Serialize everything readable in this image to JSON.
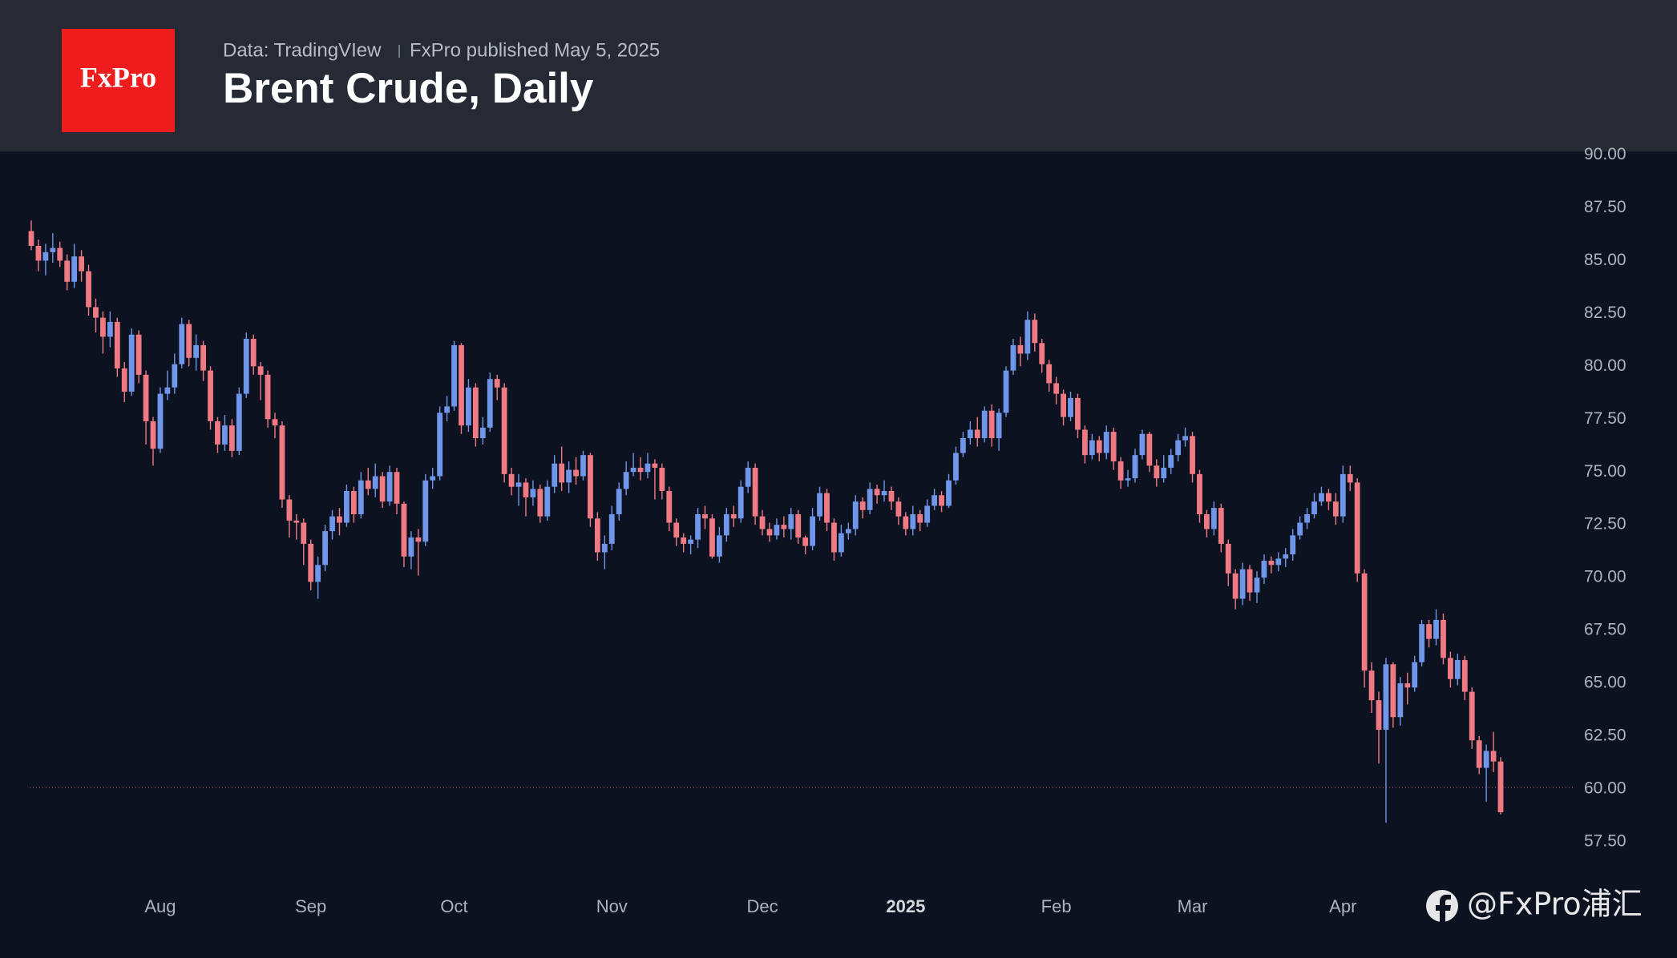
{
  "header": {
    "logo": "FxPro",
    "source": "Data: TradingVIew",
    "published": "FxPro published May 5, 2025"
  },
  "watermark": "@FxPro浦汇",
  "chart_data": {
    "type": "candlestick",
    "title": "Brent Crude, Daily",
    "up_color": "#7096ea",
    "down_color": "#f07a84",
    "ylim": [
      55.64,
      90.17
    ],
    "yticks": [
      {
        "value": 57.5,
        "label": "57.50"
      },
      {
        "value": 60,
        "label": "60.00"
      },
      {
        "value": 62.5,
        "label": "62.50"
      },
      {
        "value": 65,
        "label": "65.00"
      },
      {
        "value": 67.5,
        "label": "67.50"
      },
      {
        "value": 70,
        "label": "70.00"
      },
      {
        "value": 72.5,
        "label": "72.50"
      },
      {
        "value": 75,
        "label": "75.00"
      },
      {
        "value": 77.5,
        "label": "77.50"
      },
      {
        "value": 80,
        "label": "80.00"
      },
      {
        "value": 82.5,
        "label": "82.50"
      },
      {
        "value": 85,
        "label": "85.00"
      },
      {
        "value": 87.5,
        "label": "87.50"
      },
      {
        "value": 90,
        "label": "90.00"
      }
    ],
    "price_line": 60.07,
    "xlabels": [
      {
        "label": "Aug",
        "index": 18
      },
      {
        "label": "Sep",
        "index": 39
      },
      {
        "label": "Oct",
        "index": 59
      },
      {
        "label": "Nov",
        "index": 81
      },
      {
        "label": "Dec",
        "index": 102
      },
      {
        "label": "2025",
        "index": 122,
        "bold": true
      },
      {
        "label": "Feb",
        "index": 143
      },
      {
        "label": "Mar",
        "index": 162
      },
      {
        "label": "Apr",
        "index": 183
      }
    ],
    "ohlc": [
      [
        86.4,
        86.9,
        85.5,
        85.7
      ],
      [
        85.7,
        86.0,
        84.5,
        85.0
      ],
      [
        85.0,
        85.8,
        84.3,
        85.4
      ],
      [
        85.4,
        86.3,
        84.9,
        85.6
      ],
      [
        85.6,
        85.9,
        84.7,
        85.0
      ],
      [
        85.0,
        85.3,
        83.6,
        84.0
      ],
      [
        84.0,
        85.8,
        83.7,
        85.2
      ],
      [
        85.2,
        85.5,
        84.0,
        84.5
      ],
      [
        84.5,
        84.8,
        82.4,
        82.8
      ],
      [
        82.8,
        83.2,
        81.6,
        82.3
      ],
      [
        82.3,
        82.6,
        80.6,
        81.4
      ],
      [
        81.4,
        82.6,
        80.9,
        82.1
      ],
      [
        82.1,
        82.3,
        79.5,
        79.9
      ],
      [
        79.9,
        80.2,
        78.3,
        78.8
      ],
      [
        78.8,
        81.8,
        78.6,
        81.5
      ],
      [
        81.5,
        81.7,
        79.2,
        79.6
      ],
      [
        79.6,
        79.8,
        76.3,
        77.4
      ],
      [
        77.4,
        77.6,
        75.3,
        76.1
      ],
      [
        76.1,
        79.0,
        75.9,
        78.7
      ],
      [
        78.7,
        79.8,
        78.4,
        79.0
      ],
      [
        79.0,
        80.6,
        78.7,
        80.1
      ],
      [
        80.1,
        82.3,
        79.9,
        82.0
      ],
      [
        82.0,
        82.2,
        80.0,
        80.4
      ],
      [
        80.4,
        81.5,
        79.8,
        81.0
      ],
      [
        81.0,
        81.2,
        79.3,
        79.8
      ],
      [
        79.8,
        80.0,
        77.0,
        77.4
      ],
      [
        77.4,
        77.6,
        75.9,
        76.3
      ],
      [
        76.3,
        77.7,
        76.0,
        77.2
      ],
      [
        77.2,
        77.5,
        75.7,
        76.0
      ],
      [
        76.0,
        79.0,
        75.8,
        78.7
      ],
      [
        78.7,
        81.6,
        78.5,
        81.3
      ],
      [
        81.3,
        81.5,
        79.6,
        80.0
      ],
      [
        80.0,
        80.2,
        78.4,
        79.6
      ],
      [
        79.6,
        79.8,
        77.1,
        77.5
      ],
      [
        77.5,
        77.8,
        76.6,
        77.2
      ],
      [
        77.2,
        77.4,
        73.3,
        73.7
      ],
      [
        73.7,
        73.9,
        71.9,
        72.7
      ],
      [
        72.7,
        73.0,
        71.8,
        72.6
      ],
      [
        72.6,
        72.8,
        70.6,
        71.6
      ],
      [
        71.6,
        71.8,
        69.4,
        69.8
      ],
      [
        69.8,
        71.0,
        69.0,
        70.6
      ],
      [
        70.6,
        72.5,
        70.3,
        72.2
      ],
      [
        72.2,
        73.2,
        71.8,
        72.9
      ],
      [
        72.9,
        73.3,
        72.0,
        72.6
      ],
      [
        72.6,
        74.4,
        72.4,
        74.1
      ],
      [
        74.1,
        74.3,
        72.6,
        73.0
      ],
      [
        73.0,
        75.0,
        72.8,
        74.6
      ],
      [
        74.6,
        75.2,
        73.9,
        74.2
      ],
      [
        74.2,
        75.4,
        73.8,
        74.8
      ],
      [
        74.8,
        75.0,
        73.3,
        73.6
      ],
      [
        73.6,
        75.3,
        73.4,
        75.0
      ],
      [
        75.0,
        75.2,
        73.0,
        73.5
      ],
      [
        73.5,
        73.6,
        70.5,
        71.0
      ],
      [
        71.0,
        72.2,
        70.4,
        71.9
      ],
      [
        71.9,
        72.3,
        70.1,
        71.7
      ],
      [
        71.7,
        74.9,
        71.5,
        74.6
      ],
      [
        74.6,
        75.2,
        74.2,
        74.8
      ],
      [
        74.8,
        78.1,
        74.6,
        77.8
      ],
      [
        77.8,
        78.6,
        77.4,
        78.1
      ],
      [
        78.1,
        81.2,
        77.9,
        81.0
      ],
      [
        81.0,
        81.1,
        76.8,
        77.2
      ],
      [
        77.2,
        79.4,
        76.9,
        79.0
      ],
      [
        79.0,
        79.2,
        76.2,
        76.6
      ],
      [
        76.6,
        77.6,
        76.3,
        77.1
      ],
      [
        77.1,
        79.7,
        76.9,
        79.4
      ],
      [
        79.4,
        79.6,
        78.4,
        79.0
      ],
      [
        79.0,
        79.2,
        74.5,
        74.9
      ],
      [
        74.9,
        75.2,
        73.9,
        74.3
      ],
      [
        74.3,
        74.9,
        73.4,
        74.5
      ],
      [
        74.5,
        74.7,
        72.9,
        73.8
      ],
      [
        73.8,
        74.6,
        73.4,
        74.2
      ],
      [
        74.2,
        74.4,
        72.6,
        72.9
      ],
      [
        72.9,
        74.6,
        72.7,
        74.3
      ],
      [
        74.3,
        75.8,
        74.0,
        75.4
      ],
      [
        75.4,
        76.2,
        74.1,
        74.5
      ],
      [
        74.5,
        75.5,
        74.0,
        75.1
      ],
      [
        75.1,
        75.7,
        74.4,
        74.8
      ],
      [
        74.8,
        76.0,
        74.6,
        75.8
      ],
      [
        75.8,
        75.9,
        72.4,
        72.8
      ],
      [
        72.8,
        73.1,
        70.8,
        71.2
      ],
      [
        71.2,
        72.0,
        70.4,
        71.6
      ],
      [
        71.6,
        73.4,
        71.3,
        73.0
      ],
      [
        73.0,
        74.5,
        72.7,
        74.2
      ],
      [
        74.2,
        75.5,
        73.9,
        75.0
      ],
      [
        75.0,
        75.9,
        74.8,
        75.2
      ],
      [
        75.2,
        75.7,
        74.6,
        75.0
      ],
      [
        75.0,
        75.9,
        74.7,
        75.4
      ],
      [
        75.4,
        75.6,
        73.7,
        75.2
      ],
      [
        75.2,
        75.4,
        73.7,
        74.1
      ],
      [
        74.1,
        74.3,
        72.2,
        72.6
      ],
      [
        72.6,
        72.8,
        71.5,
        71.9
      ],
      [
        71.9,
        72.1,
        71.2,
        71.6
      ],
      [
        71.6,
        72.0,
        71.1,
        71.8
      ],
      [
        71.8,
        73.3,
        71.4,
        73.0
      ],
      [
        73.0,
        73.4,
        72.3,
        72.8
      ],
      [
        72.8,
        73.0,
        70.9,
        71.0
      ],
      [
        71.0,
        72.4,
        70.7,
        72.0
      ],
      [
        72.0,
        73.3,
        71.7,
        73.0
      ],
      [
        73.0,
        73.4,
        72.4,
        72.8
      ],
      [
        72.8,
        74.6,
        72.6,
        74.3
      ],
      [
        74.3,
        75.5,
        74.0,
        75.2
      ],
      [
        75.2,
        75.4,
        72.5,
        72.9
      ],
      [
        72.9,
        73.2,
        72.0,
        72.3
      ],
      [
        72.3,
        72.6,
        71.7,
        72.0
      ],
      [
        72.0,
        72.8,
        71.8,
        72.5
      ],
      [
        72.5,
        72.9,
        71.9,
        72.3
      ],
      [
        72.3,
        73.3,
        71.8,
        73.0
      ],
      [
        73.0,
        73.2,
        71.6,
        71.9
      ],
      [
        71.9,
        72.0,
        71.1,
        71.5
      ],
      [
        71.5,
        73.3,
        71.3,
        72.9
      ],
      [
        72.9,
        74.3,
        72.7,
        74.0
      ],
      [
        74.0,
        74.2,
        72.2,
        72.6
      ],
      [
        72.6,
        72.8,
        70.8,
        71.2
      ],
      [
        71.2,
        72.5,
        71.0,
        72.1
      ],
      [
        72.1,
        72.6,
        71.8,
        72.3
      ],
      [
        72.3,
        73.9,
        72.0,
        73.6
      ],
      [
        73.6,
        73.8,
        72.8,
        73.2
      ],
      [
        73.2,
        74.5,
        73.0,
        74.2
      ],
      [
        74.2,
        74.4,
        73.5,
        73.9
      ],
      [
        73.9,
        74.6,
        73.6,
        74.1
      ],
      [
        74.1,
        74.3,
        73.2,
        73.6
      ],
      [
        73.6,
        73.8,
        72.5,
        72.9
      ],
      [
        72.9,
        73.1,
        72.0,
        72.3
      ],
      [
        72.3,
        73.4,
        72.0,
        73.0
      ],
      [
        73.0,
        73.2,
        72.2,
        72.6
      ],
      [
        72.6,
        73.7,
        72.4,
        73.4
      ],
      [
        73.4,
        74.2,
        73.2,
        73.9
      ],
      [
        73.9,
        74.1,
        73.1,
        73.4
      ],
      [
        73.4,
        74.9,
        73.3,
        74.6
      ],
      [
        74.6,
        76.2,
        74.4,
        75.9
      ],
      [
        75.9,
        76.9,
        75.7,
        76.6
      ],
      [
        76.6,
        77.4,
        76.3,
        77.0
      ],
      [
        77.0,
        77.6,
        76.2,
        76.6
      ],
      [
        76.6,
        78.1,
        76.4,
        77.9
      ],
      [
        77.9,
        78.2,
        76.2,
        76.6
      ],
      [
        76.6,
        78.0,
        76.0,
        77.8
      ],
      [
        77.8,
        80.0,
        77.6,
        79.8
      ],
      [
        79.8,
        81.3,
        79.6,
        81.0
      ],
      [
        81.0,
        81.4,
        80.0,
        80.6
      ],
      [
        80.6,
        82.6,
        80.3,
        82.2
      ],
      [
        82.2,
        82.5,
        80.7,
        81.1
      ],
      [
        81.1,
        81.3,
        79.7,
        80.1
      ],
      [
        80.1,
        80.3,
        78.8,
        79.2
      ],
      [
        79.2,
        79.5,
        78.2,
        78.7
      ],
      [
        78.7,
        78.9,
        77.2,
        77.6
      ],
      [
        77.6,
        78.8,
        77.4,
        78.5
      ],
      [
        78.5,
        78.7,
        76.6,
        77.0
      ],
      [
        77.0,
        77.2,
        75.4,
        75.8
      ],
      [
        75.8,
        76.8,
        75.6,
        76.5
      ],
      [
        76.5,
        76.7,
        75.5,
        75.9
      ],
      [
        75.9,
        77.2,
        75.6,
        76.9
      ],
      [
        76.9,
        77.1,
        75.1,
        75.5
      ],
      [
        75.5,
        75.7,
        74.2,
        74.6
      ],
      [
        74.6,
        75.1,
        74.3,
        74.7
      ],
      [
        74.7,
        76.1,
        74.5,
        75.8
      ],
      [
        75.8,
        77.0,
        75.6,
        76.8
      ],
      [
        76.8,
        76.9,
        75.0,
        75.3
      ],
      [
        75.3,
        75.6,
        74.3,
        74.7
      ],
      [
        74.7,
        75.8,
        74.5,
        75.2
      ],
      [
        75.2,
        76.1,
        74.9,
        75.8
      ],
      [
        75.8,
        76.8,
        75.5,
        76.5
      ],
      [
        76.5,
        77.1,
        76.2,
        76.7
      ],
      [
        76.7,
        76.9,
        74.5,
        74.9
      ],
      [
        74.9,
        75.1,
        72.6,
        73.0
      ],
      [
        73.0,
        73.2,
        71.9,
        72.3
      ],
      [
        72.3,
        73.6,
        72.0,
        73.3
      ],
      [
        73.3,
        73.5,
        71.2,
        71.6
      ],
      [
        71.6,
        71.8,
        69.6,
        70.2
      ],
      [
        70.2,
        70.4,
        68.5,
        69.0
      ],
      [
        69.0,
        70.7,
        68.7,
        70.4
      ],
      [
        70.4,
        70.6,
        68.9,
        69.3
      ],
      [
        69.3,
        70.3,
        68.8,
        70.0
      ],
      [
        70.0,
        71.1,
        69.7,
        70.8
      ],
      [
        70.8,
        71.0,
        70.2,
        70.6
      ],
      [
        70.6,
        71.2,
        70.3,
        70.9
      ],
      [
        70.9,
        71.4,
        70.5,
        71.1
      ],
      [
        71.1,
        72.3,
        70.8,
        72.0
      ],
      [
        72.0,
        72.9,
        71.8,
        72.6
      ],
      [
        72.6,
        73.3,
        72.3,
        73.0
      ],
      [
        73.0,
        74.0,
        72.8,
        73.6
      ],
      [
        73.6,
        74.3,
        73.4,
        74.0
      ],
      [
        74.0,
        74.2,
        73.2,
        73.6
      ],
      [
        73.6,
        74.0,
        72.5,
        72.9
      ],
      [
        72.9,
        75.3,
        72.6,
        74.9
      ],
      [
        74.9,
        75.3,
        74.1,
        74.5
      ],
      [
        74.5,
        74.7,
        69.8,
        70.2
      ],
      [
        70.2,
        70.4,
        64.8,
        65.6
      ],
      [
        65.6,
        66.0,
        63.6,
        64.2
      ],
      [
        64.2,
        64.6,
        61.2,
        62.8
      ],
      [
        62.8,
        66.2,
        58.4,
        65.9
      ],
      [
        65.9,
        66.0,
        62.9,
        63.4
      ],
      [
        63.4,
        65.3,
        63.0,
        65.0
      ],
      [
        65.0,
        65.5,
        64.0,
        64.8
      ],
      [
        64.8,
        66.3,
        64.6,
        66.0
      ],
      [
        66.0,
        68.0,
        65.8,
        67.8
      ],
      [
        67.8,
        68.0,
        66.7,
        67.1
      ],
      [
        67.1,
        68.5,
        66.8,
        68.0
      ],
      [
        68.0,
        68.3,
        65.9,
        66.2
      ],
      [
        66.2,
        66.5,
        64.8,
        65.2
      ],
      [
        65.2,
        66.4,
        64.9,
        66.1
      ],
      [
        66.1,
        66.3,
        64.2,
        64.6
      ],
      [
        64.6,
        64.8,
        61.9,
        62.3
      ],
      [
        62.3,
        62.5,
        60.7,
        61.0
      ],
      [
        61.0,
        62.1,
        59.4,
        61.8
      ],
      [
        61.8,
        62.7,
        60.8,
        61.3
      ],
      [
        61.3,
        61.5,
        58.8,
        58.9
      ]
    ]
  }
}
